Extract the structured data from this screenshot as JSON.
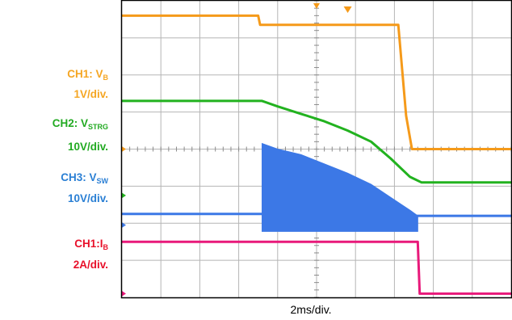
{
  "chart_data": {
    "type": "line",
    "xlabel": "2ms/div.",
    "x_divisions": 10,
    "y_divisions": 8,
    "grid": true,
    "series": [
      {
        "name": "CH1: V_B",
        "scale": "1V/div.",
        "color": "#f59a1a",
        "x_div": [
          0,
          3.5,
          3.55,
          7.1,
          7.3,
          7.45,
          10
        ],
        "y_div": [
          7.6,
          7.6,
          7.35,
          7.35,
          4.9,
          4.0,
          4.0
        ]
      },
      {
        "name": "CH2: V_STRG",
        "scale": "10V/div.",
        "color": "#22b21f",
        "x_div": [
          0,
          3.6,
          4.0,
          4.6,
          5.2,
          5.8,
          6.4,
          6.9,
          7.4,
          7.7,
          10
        ],
        "y_div": [
          5.3,
          5.3,
          5.15,
          4.95,
          4.75,
          4.5,
          4.2,
          3.75,
          3.25,
          3.1,
          3.1
        ]
      },
      {
        "name": "CH3: V_SW",
        "scale": "10V/div.",
        "color": "#3c78e6",
        "x_div": [
          0,
          3.6,
          7.6,
          10
        ],
        "y_div": [
          2.25,
          2.25,
          2.2,
          2.2
        ],
        "switching_envelope": {
          "x_div": [
            3.6,
            4.0,
            4.6,
            5.2,
            5.8,
            6.4,
            6.9,
            7.4,
            7.6
          ],
          "top_y_div": [
            4.15,
            4.0,
            3.85,
            3.6,
            3.35,
            3.05,
            2.7,
            2.35,
            2.2
          ],
          "bottom_y_div": 1.78
        }
      },
      {
        "name": "CH1:I_B",
        "scale": "2A/div.",
        "color": "#e8197a",
        "x_div": [
          0,
          7.6,
          7.65,
          10
        ],
        "y_div": [
          1.5,
          1.5,
          0.1,
          0.1
        ]
      }
    ]
  },
  "labels": {
    "ch1_name": "CH1: V",
    "ch1_sub": "B",
    "ch1_scale": "1V/div.",
    "ch2_name": "CH2: V",
    "ch2_sub": "STRG",
    "ch2_scale": "10V/div.",
    "ch3_name": "CH3: V",
    "ch3_sub": "SW",
    "ch3_scale": "10V/div.",
    "ch4_name": "CH1:I",
    "ch4_sub": "B",
    "ch4_scale": "2A/div."
  }
}
